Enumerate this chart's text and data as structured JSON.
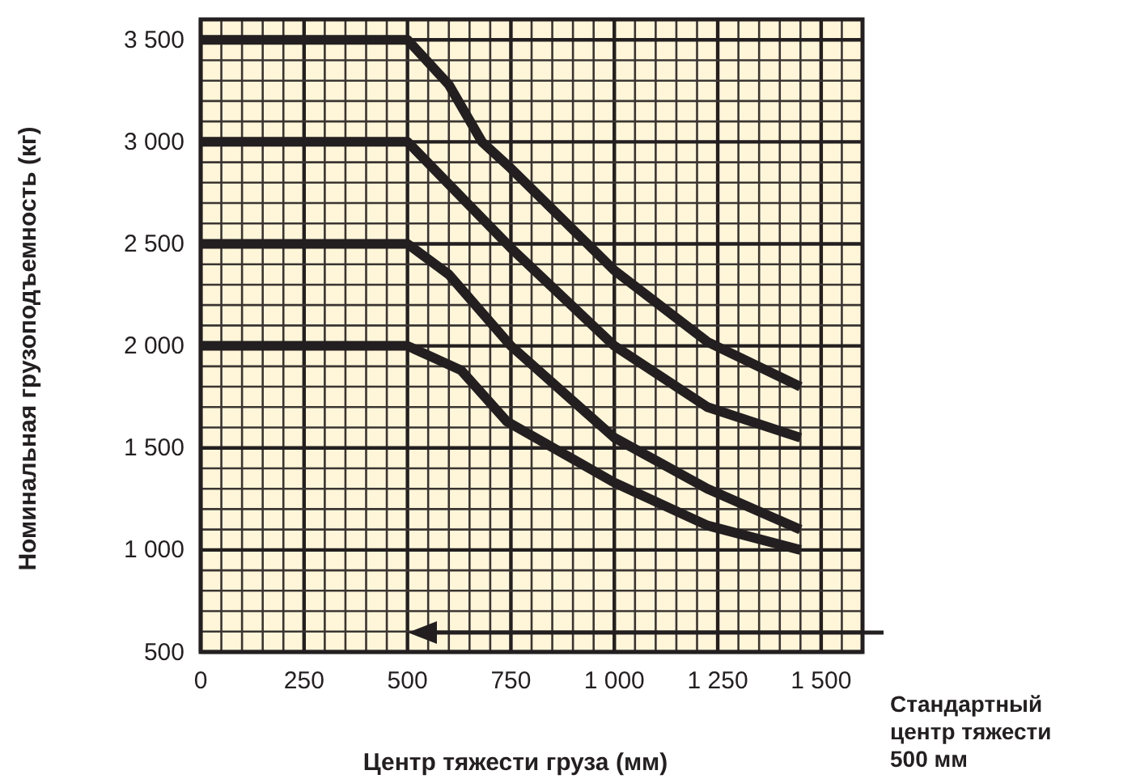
{
  "chart_data": {
    "type": "line",
    "xlabel": "Центр тяжести груза (мм)",
    "ylabel": "Номинальная грузоподъемность (кг)",
    "xlim": [
      0,
      1600
    ],
    "ylim": [
      500,
      3600
    ],
    "xticks": [
      0,
      250,
      500,
      750,
      {
        "value": 1000,
        "label": "1 000"
      },
      {
        "value": 1250,
        "label": "1 250"
      },
      {
        "value": 1500,
        "label": "1 500"
      }
    ],
    "yticks": [
      500,
      {
        "value": 1000,
        "label": "1 000"
      },
      {
        "value": 1500,
        "label": "1 500"
      },
      {
        "value": 2000,
        "label": "2 000"
      },
      {
        "value": 2500,
        "label": "2 500"
      },
      {
        "value": 3000,
        "label": "3 000"
      },
      {
        "value": 3500,
        "label": "3 500"
      }
    ],
    "grid": true,
    "line_style": "solid",
    "marker": "none",
    "series": [
      {
        "color": "#231f20",
        "x": [
          0,
          500,
          600,
          680,
          750,
          1000,
          1225,
          1450
        ],
        "values": [
          3500,
          3500,
          3280,
          3000,
          2870,
          2370,
          2020,
          1800
        ]
      },
      {
        "color": "#231f20",
        "x": [
          0,
          500,
          750,
          1000,
          1225,
          1450
        ],
        "values": [
          3000,
          3000,
          2480,
          2000,
          1700,
          1550
        ]
      },
      {
        "color": "#231f20",
        "x": [
          0,
          500,
          600,
          750,
          1000,
          1225,
          1450
        ],
        "values": [
          2500,
          2500,
          2350,
          2000,
          1550,
          1300,
          1100
        ]
      },
      {
        "color": "#231f20",
        "x": [
          0,
          500,
          630,
          740,
          1000,
          1225,
          1450
        ],
        "values": [
          2000,
          2000,
          1880,
          1630,
          1330,
          1120,
          1000
        ]
      }
    ],
    "annotations": [
      "Стандартный\nцентр тяжести\n500 мм"
    ]
  }
}
